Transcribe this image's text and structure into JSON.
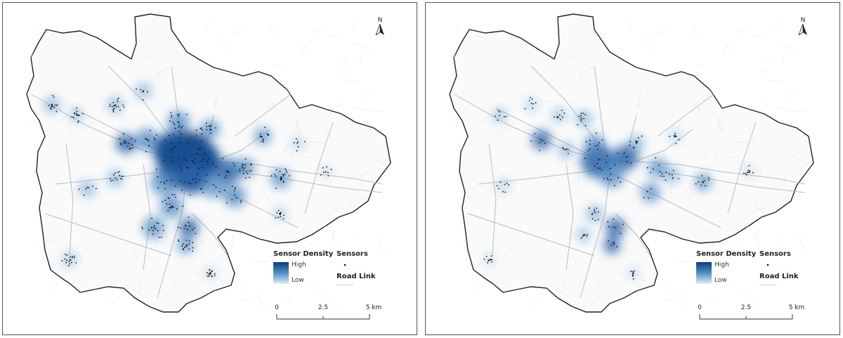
{
  "panels": [
    {
      "id": "left",
      "north_label": "N",
      "legend": {
        "density_title": "Sensor Density",
        "high_label": "High",
        "low_label": "Low",
        "sensors_label": "Sensors",
        "road_link_label": "Road Link"
      },
      "scale": {
        "labels": [
          "0",
          "2.5",
          "5 km"
        ]
      },
      "colors": {
        "density_high": "#0b3c7c",
        "density_mid": "#5b98cd",
        "density_low": "#e1eef9",
        "road": "#bdbdbd",
        "boundary": "#222222"
      }
    },
    {
      "id": "right",
      "north_label": "N",
      "legend": {
        "density_title": "Sensor Density",
        "high_label": "High",
        "low_label": "Low",
        "sensors_label": "Sensors",
        "road_link_label": "Road Link"
      },
      "scale": {
        "labels": [
          "0",
          "2.5",
          "5 km"
        ]
      },
      "colors": {
        "density_high": "#0b3c7c",
        "density_mid": "#5b98cd",
        "density_low": "#e1eef9",
        "road": "#bdbdbd",
        "boundary": "#222222"
      }
    }
  ]
}
